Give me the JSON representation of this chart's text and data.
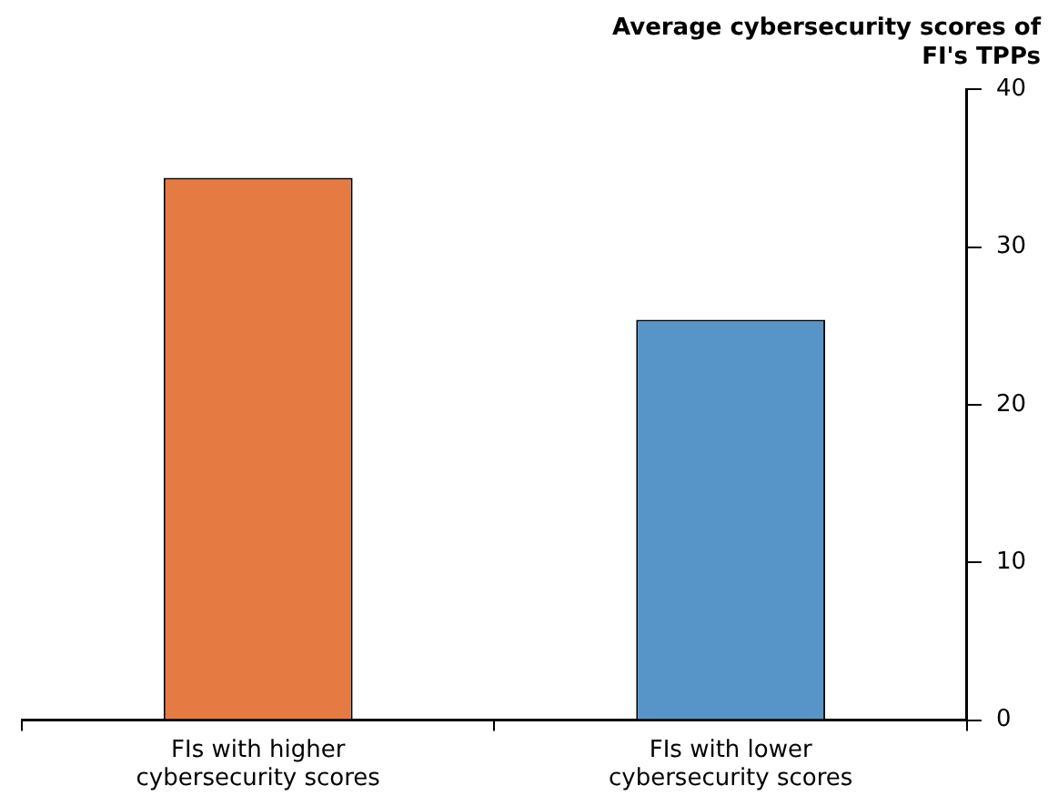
{
  "chart_data": {
    "type": "bar",
    "title": "Average cybersecurity scores of FI's TPPs",
    "categories": [
      "FIs with higher cybersecurity scores",
      "FIs with lower cybersecurity scores"
    ],
    "values": [
      34.4,
      25.4
    ],
    "colors": [
      "#e57a43",
      "#5795c8"
    ],
    "ylim": [
      0,
      40
    ],
    "yticks": [
      0,
      10,
      20,
      30,
      40
    ],
    "grid": false,
    "legend": false
  }
}
